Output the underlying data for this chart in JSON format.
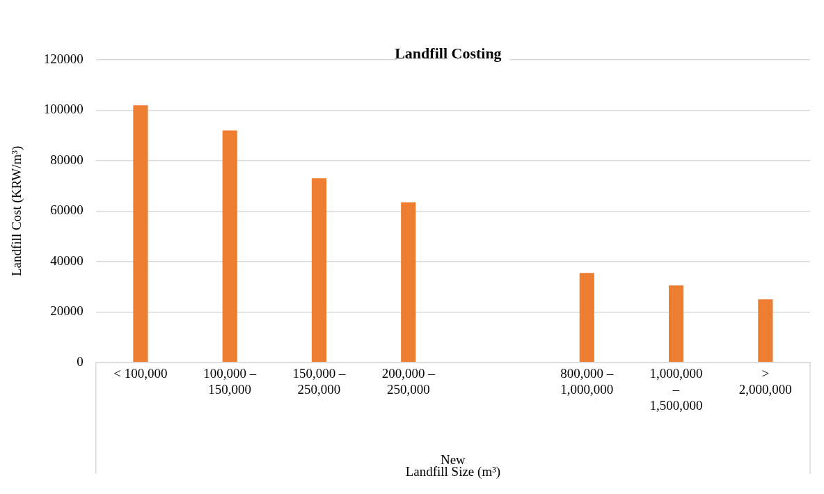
{
  "chart_data": {
    "type": "bar",
    "title": "Landfill Costing",
    "xlabel": "Landfill Size (m³)",
    "ylabel": "Landfill Cost (KRW/m³)",
    "categories": [
      "< 100,000",
      "100,000 – 150,000",
      "150,000 – 250,000",
      "200,000 – 250,000",
      null,
      "800,000 – 1,000,000",
      "1,000,000 – 1,500,000",
      "> 2,000,000"
    ],
    "values": [
      102000,
      92000,
      73000,
      63500,
      null,
      35500,
      30500,
      25000
    ],
    "color": "#ed7d31",
    "ylim": [
      0,
      120000
    ],
    "yticks": [
      0,
      20000,
      40000,
      60000,
      80000,
      100000,
      120000
    ],
    "grid": "y",
    "legend": false,
    "annotations": [
      "New"
    ]
  }
}
